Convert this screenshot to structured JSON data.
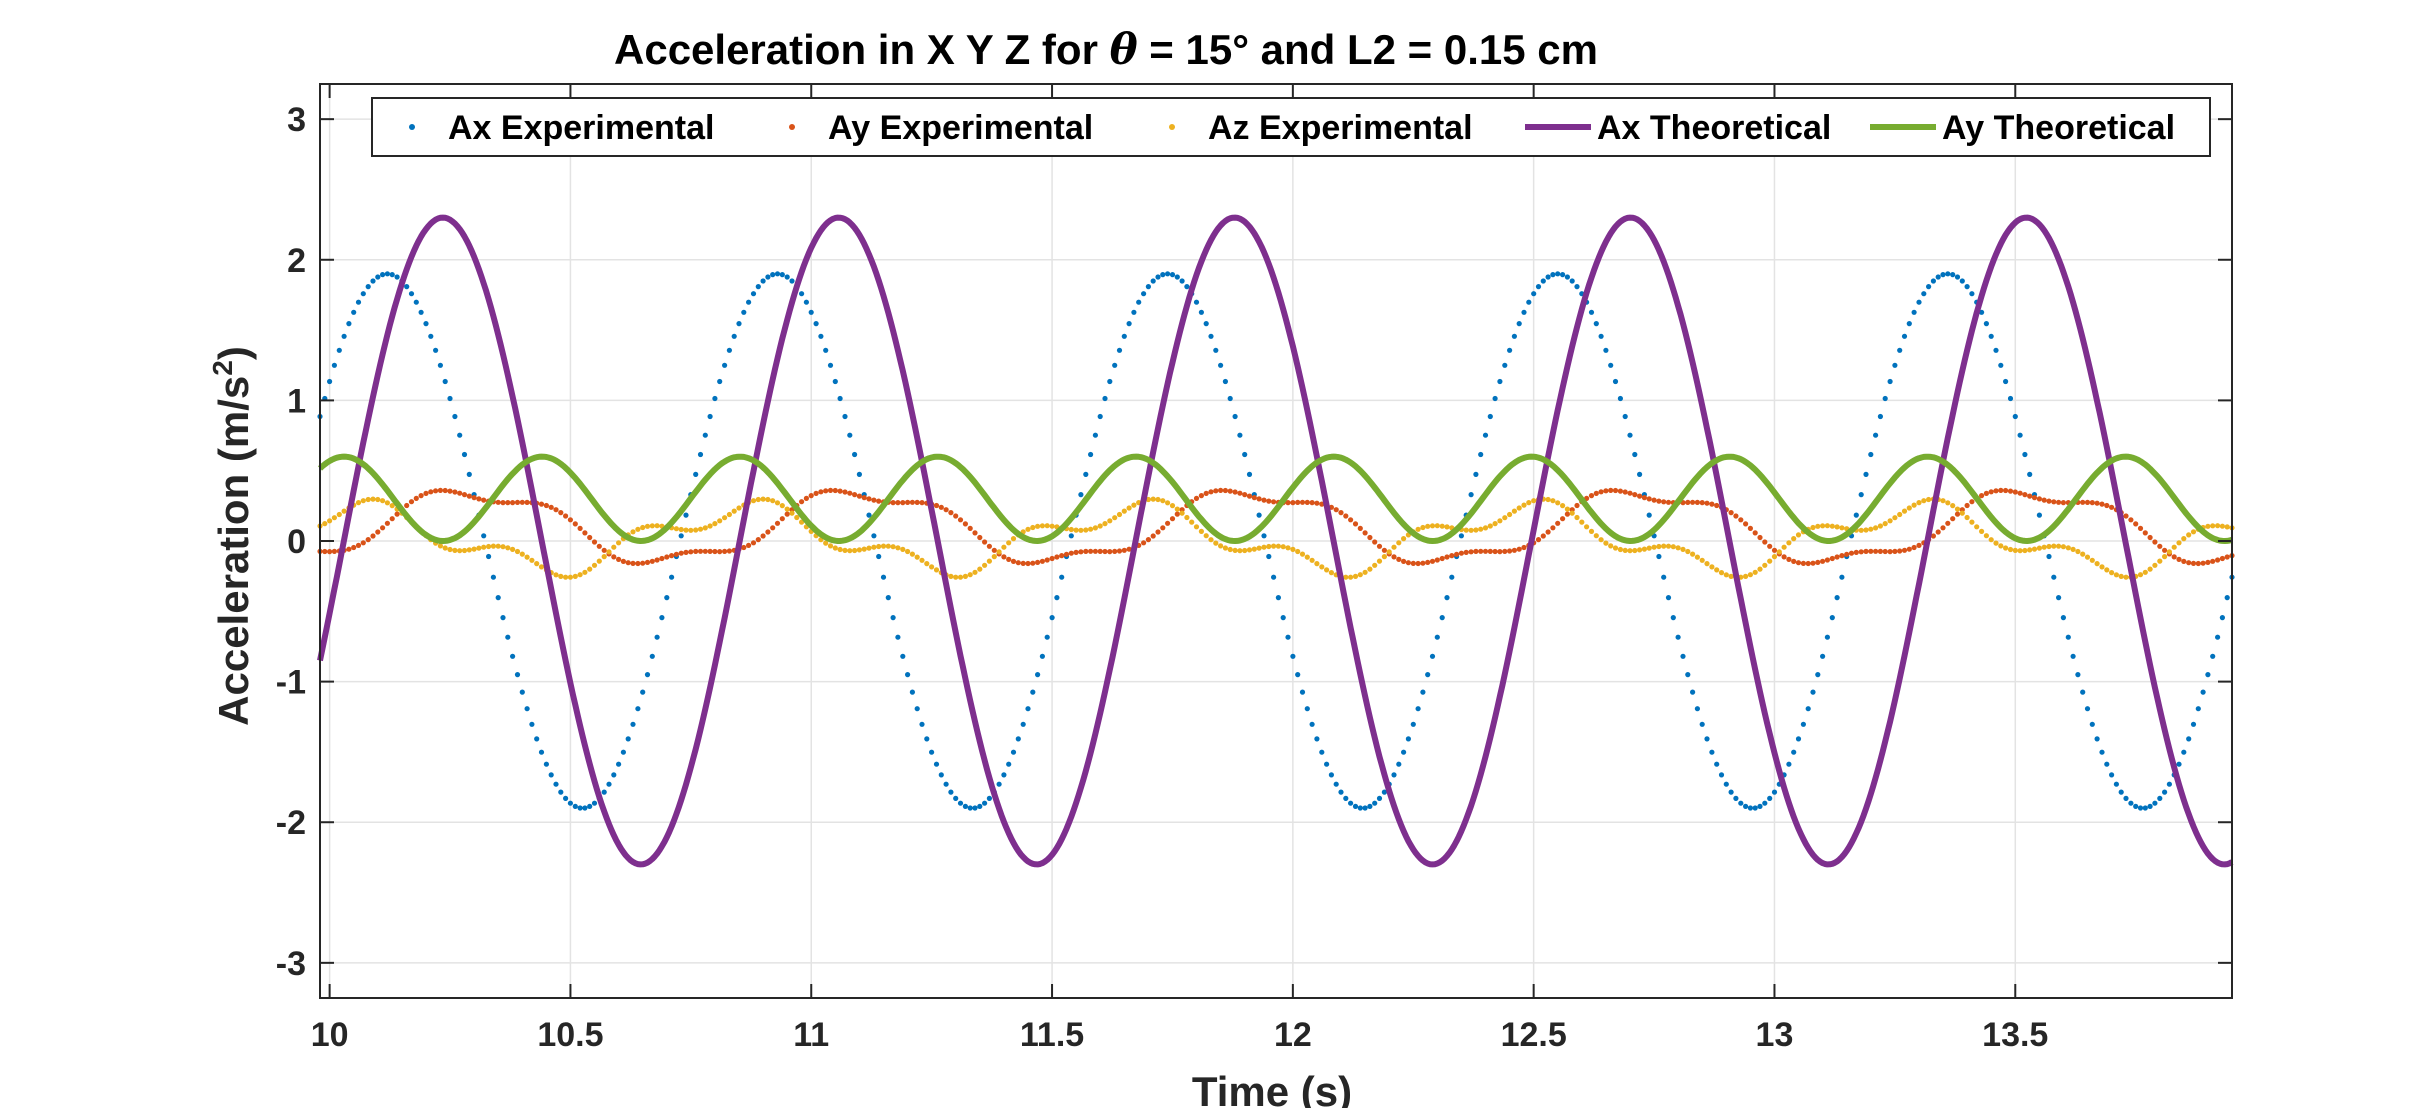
{
  "chart_data": {
    "type": "line",
    "title_prefix": "Acceleration in X Y Z for ",
    "title_symbol": "θ",
    "title_suffix": " = 15° and L2 = 0.15 cm",
    "xlabel": "Time (s)",
    "ylabel_main": "Acceleration (m/s",
    "ylabel_sup": "2",
    "ylabel_end": ")",
    "xlim": [
      9.98,
      13.95
    ],
    "ylim": [
      -3.25,
      3.25
    ],
    "xticks": [
      10,
      10.5,
      11,
      11.5,
      12,
      12.5,
      13,
      13.5
    ],
    "xtick_labels": [
      "10",
      "10.5",
      "11",
      "11.5",
      "12",
      "12.5",
      "13",
      "13.5"
    ],
    "yticks": [
      -3,
      -2,
      -1,
      0,
      1,
      2,
      3
    ],
    "ytick_labels": [
      "-3",
      "-2",
      "-1",
      "0",
      "1",
      "2",
      "3"
    ],
    "grid": true,
    "legend_position": "top",
    "series": [
      {
        "name": "Ax Experimental",
        "style": "dots",
        "color": "#0072BD",
        "sample_step": 0.01,
        "model": {
          "offset": 0.0,
          "terms": [
            {
              "amp": 1.9,
              "period": 0.81,
              "phase_time": 10.12
            }
          ]
        }
      },
      {
        "name": "Ay Experimental",
        "style": "dots",
        "color": "#D95319",
        "sample_step": 0.01,
        "model": {
          "offset": 0.1,
          "terms": [
            {
              "amp": 0.25,
              "period": 0.81,
              "phase_time": 10.3
            },
            {
              "amp": 0.06,
              "period": 0.27,
              "phase_time": 10.2
            }
          ]
        }
      },
      {
        "name": "Az Experimental",
        "style": "dots",
        "color": "#EDB120",
        "sample_step": 0.01,
        "model": {
          "offset": 0.02,
          "terms": [
            {
              "amp": 0.2,
              "period": 0.81,
              "phase_time": 10.05
            },
            {
              "amp": 0.09,
              "period": 0.27,
              "phase_time": 10.1
            }
          ]
        }
      },
      {
        "name": "Ax Theoretical",
        "style": "line",
        "color": "#7E2F8E",
        "sample_step": 0.005,
        "model": {
          "offset": 0.0,
          "terms": [
            {
              "amp": 2.3,
              "period": 0.822,
              "phase_time": 10.235
            }
          ]
        }
      },
      {
        "name": "Ay Theoretical",
        "style": "line",
        "color": "#77AC30",
        "sample_step": 0.005,
        "model": {
          "offset": 0.3,
          "terms": [
            {
              "amp": 0.3,
              "period": 0.411,
              "phase_time": 10.03
            }
          ]
        }
      }
    ]
  }
}
